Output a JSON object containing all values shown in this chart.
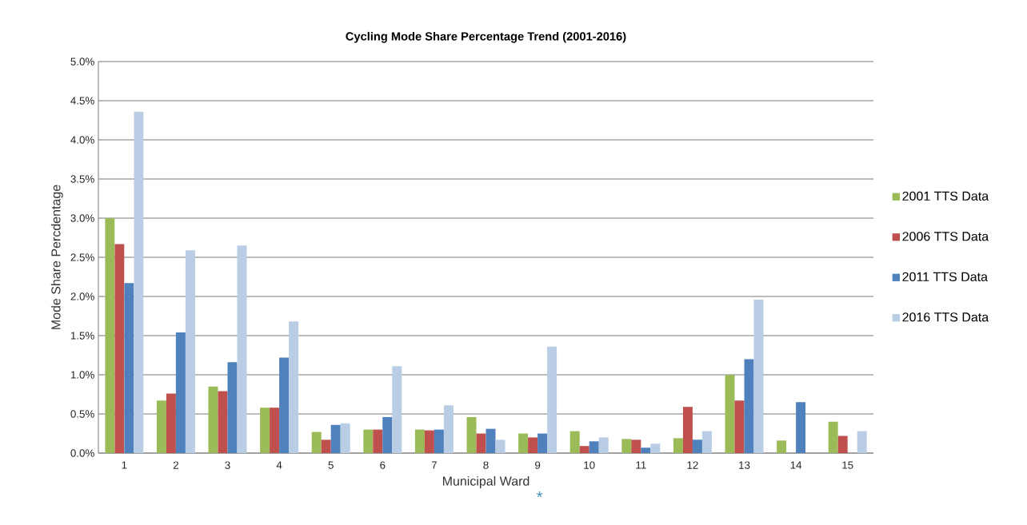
{
  "chart_data": {
    "type": "bar",
    "title": "Cycling Mode Share Percentage  Trend (2001-2016)",
    "xlabel": "Municipal Ward",
    "ylabel": "Mode Share Percdentage",
    "annotations": [
      "*"
    ],
    "categories": [
      "1",
      "2",
      "3",
      "4",
      "5",
      "6",
      "7",
      "8",
      "9",
      "10",
      "11",
      "12",
      "13",
      "14",
      "15"
    ],
    "series": [
      {
        "name": "2001 TTS Data",
        "color": "#9bbb59",
        "values": [
          3.0,
          0.67,
          0.85,
          0.58,
          0.27,
          0.3,
          0.3,
          0.46,
          0.25,
          0.28,
          0.18,
          0.19,
          1.0,
          0.16,
          0.4
        ]
      },
      {
        "name": "2006 TTS Data",
        "color": "#c0504d",
        "values": [
          2.67,
          0.76,
          0.79,
          0.58,
          0.17,
          0.3,
          0.29,
          0.25,
          0.2,
          0.09,
          0.17,
          0.59,
          0.67,
          null,
          0.22
        ]
      },
      {
        "name": "2011 TTS Data",
        "color": "#4f81bd",
        "values": [
          2.17,
          1.54,
          1.16,
          1.22,
          0.36,
          0.46,
          0.3,
          0.31,
          0.25,
          0.15,
          0.07,
          0.17,
          1.2,
          0.65,
          null
        ]
      },
      {
        "name": "2016 TTS Data",
        "color": "#b9cde5",
        "values": [
          4.36,
          2.59,
          2.65,
          1.68,
          0.38,
          1.11,
          0.61,
          0.17,
          1.36,
          0.2,
          0.12,
          0.28,
          1.96,
          null,
          0.28
        ]
      }
    ],
    "ylim": [
      0,
      5.0
    ],
    "yticks": [
      {
        "value": 0,
        "label": "0.0%"
      },
      {
        "value": 0.5,
        "label": "0.5%"
      },
      {
        "value": 1.0,
        "label": "1.0%"
      },
      {
        "value": 1.5,
        "label": "1.5%"
      },
      {
        "value": 2.0,
        "label": "2.0%"
      },
      {
        "value": 2.5,
        "label": "2.5%"
      },
      {
        "value": 3.0,
        "label": "3.0%"
      },
      {
        "value": 3.5,
        "label": "3.5%"
      },
      {
        "value": 4.0,
        "label": "4.0%"
      },
      {
        "value": 4.5,
        "label": "4.5%"
      },
      {
        "value": 5.0,
        "label": "5.0%"
      }
    ],
    "grid": "y",
    "legend": "right"
  }
}
